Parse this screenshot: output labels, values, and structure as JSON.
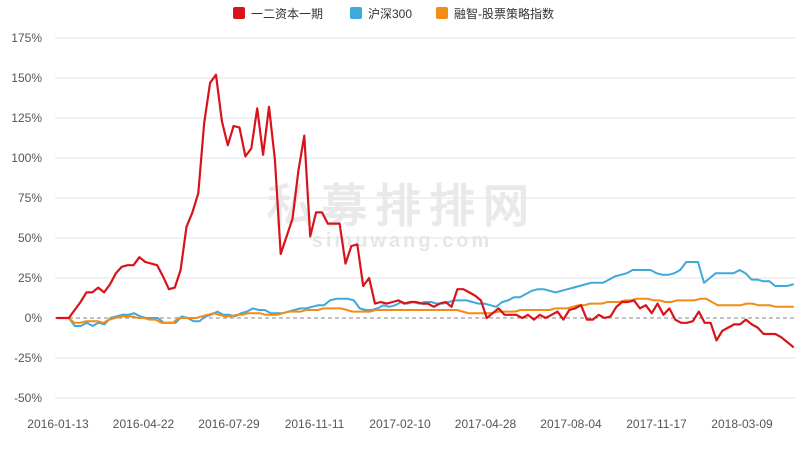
{
  "watermark": {
    "cn": "私募排排网",
    "url": "simuwang.com"
  },
  "chart_data": {
    "type": "line",
    "x_tick_labels": [
      "2016-01-13",
      "2016-04-22",
      "2016-07-29",
      "2016-11-11",
      "2017-02-10",
      "2017-04-28",
      "2017-08-04",
      "2017-11-17",
      "2018-03-09"
    ],
    "y_tick_labels": [
      "175%",
      "150%",
      "125%",
      "100%",
      "75%",
      "50%",
      "25%",
      "0%",
      "-25%",
      "-50%"
    ],
    "ylim": [
      -50,
      175
    ],
    "grid": "horizontal",
    "legend_position": "top-center",
    "series": [
      {
        "name": "一二资本一期",
        "color": "#d7141b",
        "values": [
          0,
          0,
          0,
          5,
          10,
          16,
          16,
          19,
          16,
          21,
          28,
          32,
          33,
          33,
          38,
          35,
          34,
          33,
          26,
          18,
          19,
          30,
          57,
          66,
          78,
          122,
          147,
          152,
          123,
          108,
          120,
          119,
          101,
          106,
          131,
          102,
          132,
          99,
          40,
          51,
          62,
          92,
          114,
          51,
          66,
          66,
          59,
          59,
          59,
          34,
          45,
          46,
          20,
          25,
          9,
          10,
          9,
          10,
          11,
          9,
          10,
          10,
          9,
          9,
          7,
          9,
          10,
          7,
          18,
          18,
          16,
          14,
          11,
          0,
          3,
          6,
          2,
          2,
          2,
          0,
          2,
          -1,
          2,
          0,
          2,
          4,
          -1,
          5,
          6,
          8,
          -1,
          -1,
          2,
          0,
          1,
          7,
          10,
          10,
          11,
          6,
          8,
          3,
          9,
          2,
          6,
          -1,
          -3,
          -3,
          -2,
          4,
          -3,
          -3,
          -14,
          -8,
          -6,
          -4,
          -4,
          -1,
          -4,
          -6,
          -10,
          -10,
          -10,
          -12,
          -15,
          -18
        ]
      },
      {
        "name": "沪深300",
        "color": "#3fa9dc",
        "values": [
          0,
          0,
          0,
          -5,
          -5,
          -3,
          -5,
          -3,
          -4,
          0,
          1,
          2,
          2,
          3,
          1,
          0,
          0,
          0,
          -3,
          -3,
          -3,
          1,
          0,
          -2,
          -2,
          1,
          2,
          4,
          2,
          2,
          1,
          3,
          4,
          6,
          5,
          5,
          3,
          3,
          3,
          4,
          5,
          6,
          6,
          7,
          8,
          8,
          11,
          12,
          12,
          12,
          11,
          6,
          5,
          5,
          6,
          8,
          7,
          8,
          10,
          9,
          10,
          9,
          10,
          10,
          9,
          9,
          10,
          11,
          11,
          11,
          10,
          9,
          9,
          8,
          7,
          10,
          11,
          13,
          13,
          15,
          17,
          18,
          18,
          17,
          16,
          17,
          18,
          19,
          20,
          21,
          22,
          22,
          22,
          24,
          26,
          27,
          28,
          30,
          30,
          30,
          30,
          28,
          27,
          27,
          28,
          30,
          35,
          35,
          35,
          22,
          25,
          28,
          28,
          28,
          28,
          30,
          28,
          24,
          24,
          23,
          23,
          20,
          20,
          20,
          21
        ]
      },
      {
        "name": "融智-股票策略指数",
        "color": "#f28c14",
        "values": [
          0,
          0,
          0,
          -3,
          -3,
          -2,
          -2,
          -2,
          -3,
          -1,
          0,
          1,
          1,
          1,
          0,
          0,
          -1,
          -1,
          -3,
          -3,
          -3,
          0,
          0,
          0,
          0,
          1,
          2,
          3,
          2,
          1,
          1,
          2,
          2,
          3,
          3,
          3,
          2,
          2,
          2,
          3,
          4,
          4,
          4,
          5,
          5,
          5,
          6,
          6,
          6,
          6,
          5,
          4,
          4,
          4,
          4,
          5,
          5,
          5,
          5,
          5,
          5,
          5,
          5,
          5,
          5,
          5,
          5,
          5,
          5,
          5,
          4,
          3,
          3,
          3,
          3,
          3,
          4,
          4,
          4,
          4,
          5,
          5,
          5,
          5,
          5,
          5,
          6,
          6,
          6,
          7,
          8,
          8,
          9,
          9,
          9,
          10,
          10,
          10,
          11,
          11,
          12,
          12,
          12,
          11,
          11,
          10,
          10,
          11,
          11,
          11,
          11,
          12,
          12,
          10,
          8,
          8,
          8,
          8,
          8,
          9,
          9,
          8,
          8,
          8,
          7,
          7,
          7,
          7
        ]
      }
    ]
  }
}
